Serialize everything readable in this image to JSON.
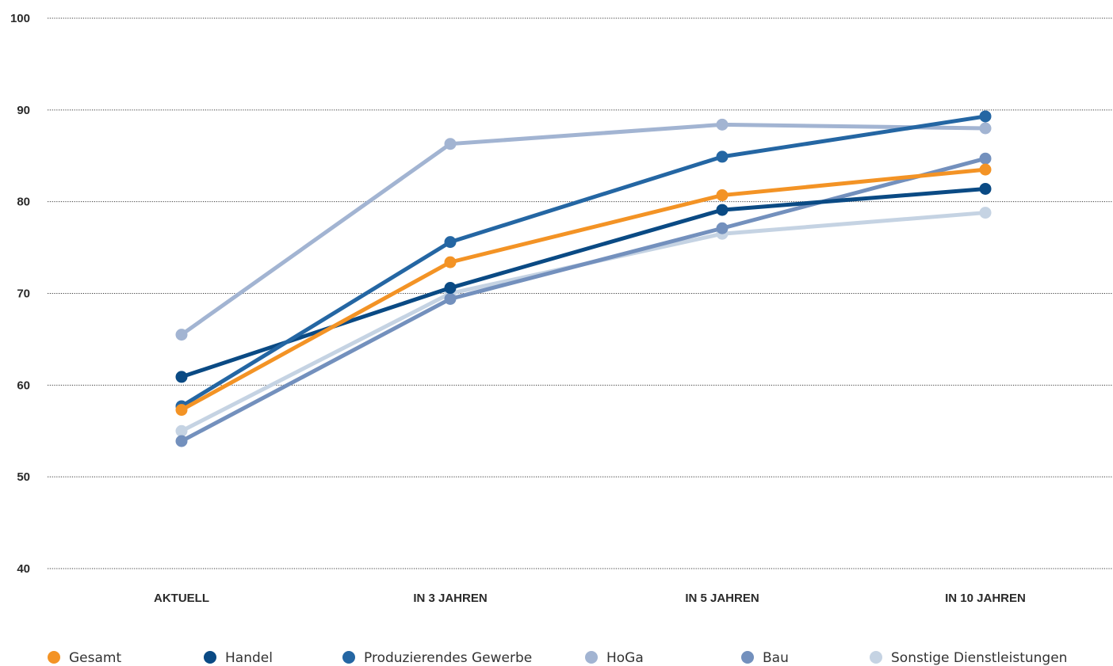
{
  "chart_data": {
    "type": "line",
    "title": "",
    "xlabel": "",
    "ylabel": "",
    "categories": [
      "AKTUELL",
      "IN 3 JAHREN",
      "IN 5 JAHREN",
      "IN 10 JAHREN"
    ],
    "ylim": [
      40,
      100
    ],
    "yticks": [
      100,
      90,
      80,
      70,
      60,
      50,
      40
    ],
    "grid": "horizontal dotted",
    "legend_position": "bottom",
    "series": [
      {
        "name": "Sonstige Dienstleistungen",
        "color": "#c5d3e3",
        "values": [
          55.0,
          70.0,
          76.5,
          78.8
        ]
      },
      {
        "name": "HoGa",
        "color": "#a2b4d2",
        "values": [
          65.5,
          86.3,
          88.4,
          88.0
        ]
      },
      {
        "name": "Bau",
        "color": "#7390bd",
        "values": [
          53.9,
          69.4,
          77.1,
          84.7
        ]
      },
      {
        "name": "Handel",
        "color": "#0a4a84",
        "values": [
          60.9,
          70.6,
          79.1,
          81.4
        ]
      },
      {
        "name": "Produzierendes Gewerbe",
        "color": "#2466a3",
        "values": [
          57.7,
          75.6,
          84.9,
          89.3
        ]
      },
      {
        "name": "Gesamt",
        "color": "#f39325",
        "values": [
          57.3,
          73.4,
          80.7,
          83.5
        ]
      }
    ],
    "legend_order": [
      "Gesamt",
      "Handel",
      "Produzierendes Gewerbe",
      "HoGa",
      "Bau",
      "Sonstige Dienstleistungen"
    ]
  }
}
